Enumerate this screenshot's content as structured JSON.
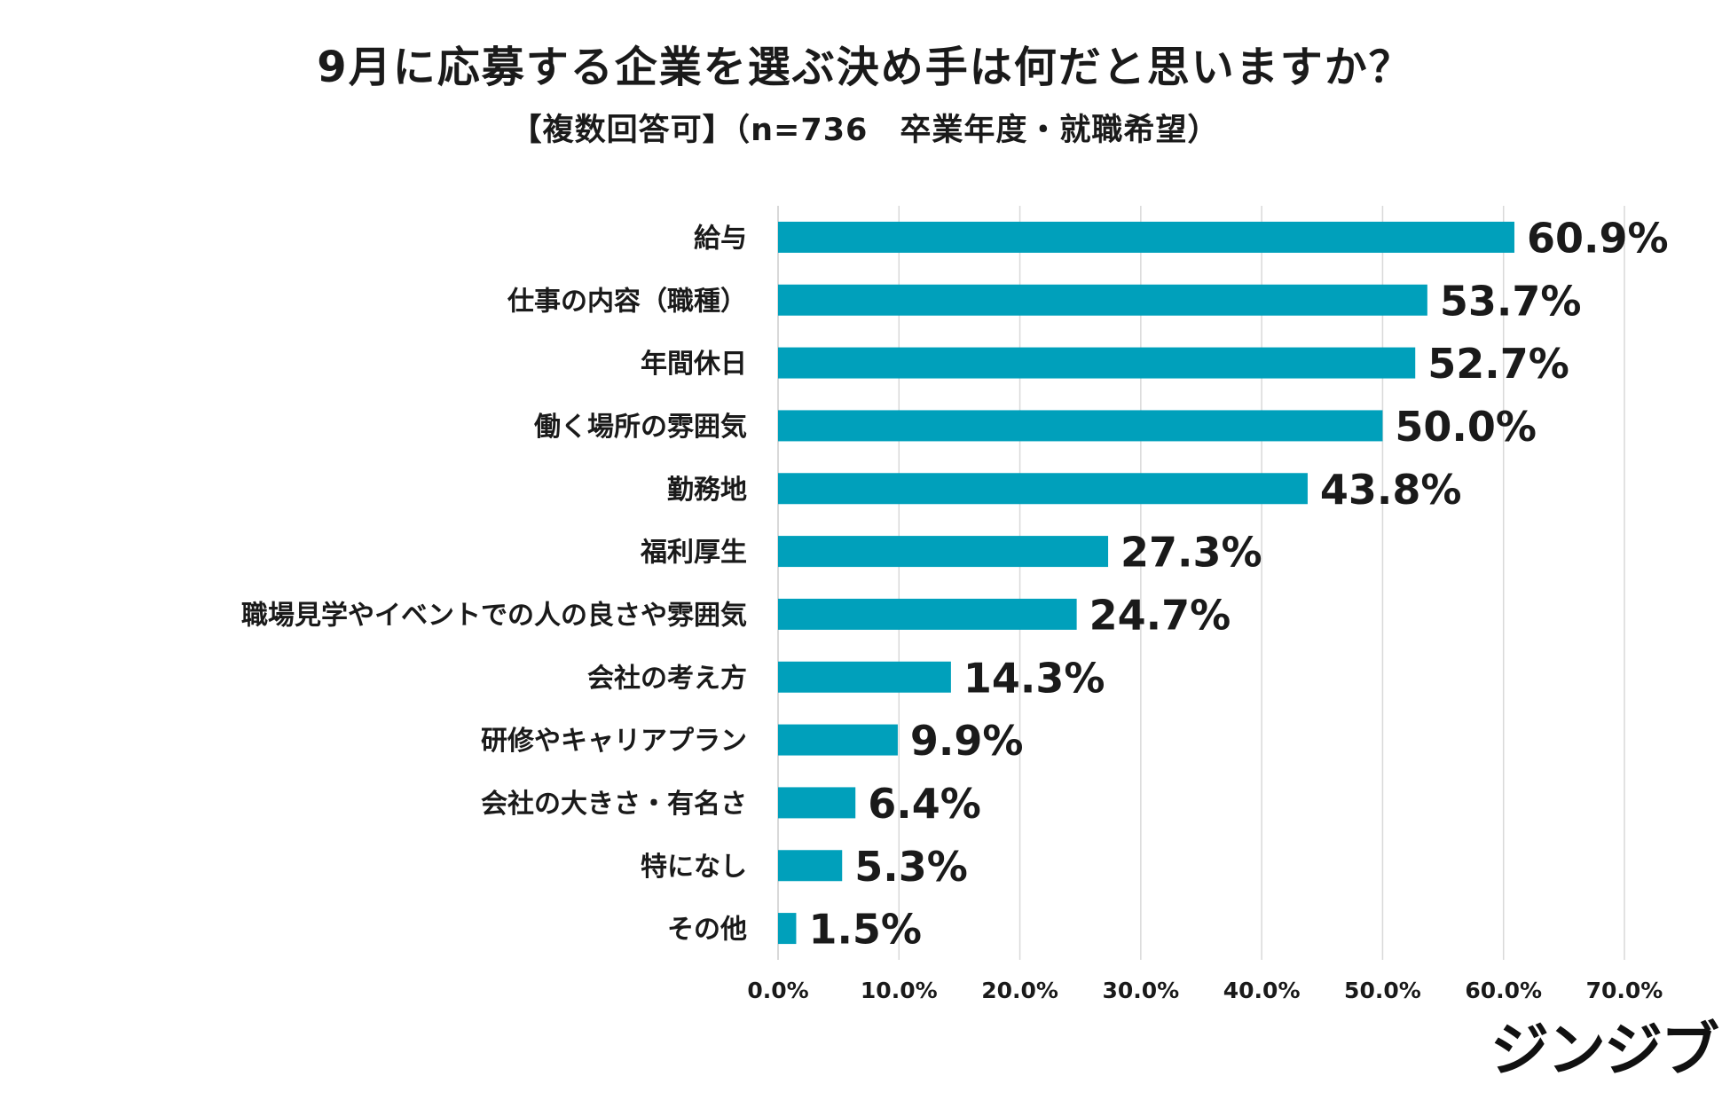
{
  "chart_data": {
    "type": "bar",
    "orientation": "horizontal",
    "title": "9月に応募する企業を選ぶ決め手は何だと思いますか？",
    "subtitle": "【複数回答可】（n=736　卒業年度・就職希望）",
    "categories": [
      "給与",
      "仕事の内容（職種）",
      "年間休日",
      "働く場所の雰囲気",
      "勤務地",
      "福利厚生",
      "職場見学やイベントでの人の良さや雰囲気",
      "会社の考え方",
      "研修やキャリアプラン",
      "会社の大きさ・有名さ",
      "特になし",
      "その他"
    ],
    "values": [
      60.9,
      53.7,
      52.7,
      50.0,
      43.8,
      27.3,
      24.7,
      14.3,
      9.9,
      6.4,
      5.3,
      1.5
    ],
    "value_labels": [
      "60.9%",
      "53.7%",
      "52.7%",
      "50.0%",
      "43.8%",
      "27.3%",
      "24.7%",
      "14.3%",
      "9.9%",
      "6.4%",
      "5.3%",
      "1.5%"
    ],
    "xlim": [
      0,
      70
    ],
    "x_ticks": [
      "0.0%",
      "10.0%",
      "20.0%",
      "30.0%",
      "40.0%",
      "50.0%",
      "60.0%",
      "70.0%"
    ],
    "grid": true,
    "bar_color": "#00a0bb"
  },
  "brand": {
    "logo_text": "ジンジブ"
  }
}
